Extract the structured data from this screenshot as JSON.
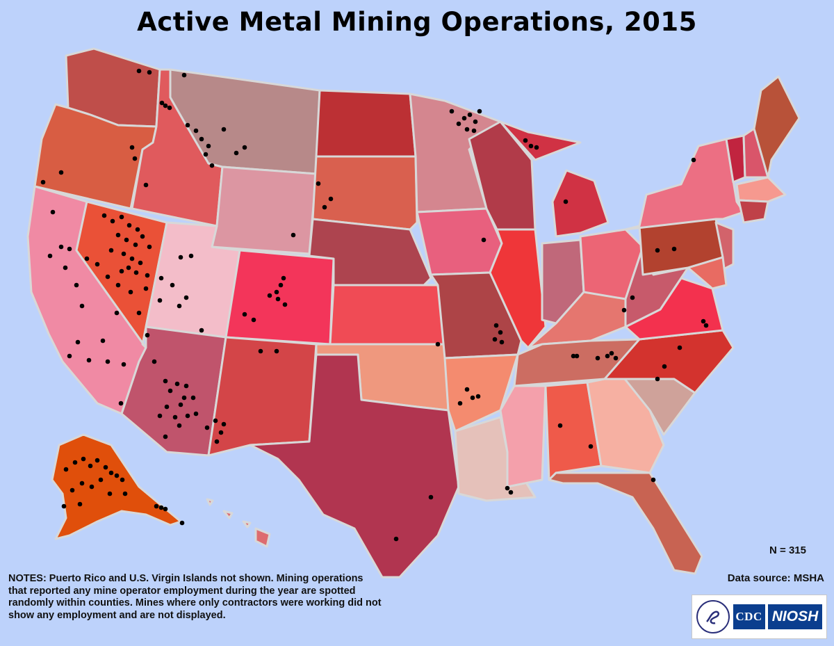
{
  "title": "Active Metal Mining Operations, 2015",
  "count_label": "N = 315",
  "source_label": "Data source: MSHA",
  "notes": "NOTES: Puerto Rico and U.S. Virgin Islands not shown. Mining operations that reported any mine operator employment during the year are spotted randomly within counties. Mines where only contractors were working did not show any employment and are not displayed.",
  "logo": {
    "cdc": "CDC",
    "niosh": "NIOSH"
  },
  "colors": {
    "background": "#bdd2fb",
    "border": "#d8d8d8",
    "dot": "#000000"
  },
  "states": [
    {
      "id": "WA",
      "color": "#bf4e4a"
    },
    {
      "id": "OR",
      "color": "#d85d43"
    },
    {
      "id": "CA",
      "color": "#f08aa4"
    },
    {
      "id": "NV",
      "color": "#ea5137"
    },
    {
      "id": "ID",
      "color": "#e05a5d"
    },
    {
      "id": "MT",
      "color": "#b78989"
    },
    {
      "id": "WY",
      "color": "#dc96a2"
    },
    {
      "id": "UT",
      "color": "#f3bdc9"
    },
    {
      "id": "AZ",
      "color": "#c0546c"
    },
    {
      "id": "CO",
      "color": "#f3355a"
    },
    {
      "id": "NM",
      "color": "#d34548"
    },
    {
      "id": "ND",
      "color": "#bc3034"
    },
    {
      "id": "SD",
      "color": "#d9604f"
    },
    {
      "id": "NE",
      "color": "#ad444f"
    },
    {
      "id": "KS",
      "color": "#f04b55"
    },
    {
      "id": "OK",
      "color": "#ef987e"
    },
    {
      "id": "TX",
      "color": "#b13550"
    },
    {
      "id": "MN",
      "color": "#d4868f"
    },
    {
      "id": "IA",
      "color": "#e8607e"
    },
    {
      "id": "MO",
      "color": "#ad4447"
    },
    {
      "id": "AR",
      "color": "#f48b6f"
    },
    {
      "id": "LA",
      "color": "#e5c1ba"
    },
    {
      "id": "WI",
      "color": "#b13b49"
    },
    {
      "id": "IL",
      "color": "#ef3639"
    },
    {
      "id": "MI",
      "color": "#d03244"
    },
    {
      "id": "IN",
      "color": "#c0687a"
    },
    {
      "id": "OH",
      "color": "#ec6575"
    },
    {
      "id": "KY",
      "color": "#e5766f"
    },
    {
      "id": "TN",
      "color": "#cc6d62"
    },
    {
      "id": "MS",
      "color": "#f4a0ab"
    },
    {
      "id": "AL",
      "color": "#ef5a4a"
    },
    {
      "id": "GA",
      "color": "#f6b0a2"
    },
    {
      "id": "FL",
      "color": "#c86352"
    },
    {
      "id": "SC",
      "color": "#cfa29a"
    },
    {
      "id": "NC",
      "color": "#d3332e"
    },
    {
      "id": "VA",
      "color": "#f3314e"
    },
    {
      "id": "WV",
      "color": "#c75a6b"
    },
    {
      "id": "PA",
      "color": "#b2422f"
    },
    {
      "id": "NY",
      "color": "#ec6f83"
    },
    {
      "id": "VT",
      "color": "#c1243f"
    },
    {
      "id": "NH",
      "color": "#d9556a"
    },
    {
      "id": "ME",
      "color": "#b85239"
    },
    {
      "id": "MA",
      "color": "#f6998f"
    },
    {
      "id": "CT",
      "color": "#bf4148"
    },
    {
      "id": "NJ",
      "color": "#d2636b"
    },
    {
      "id": "MD",
      "color": "#e86b62"
    },
    {
      "id": "AK",
      "color": "#e04f0b"
    },
    {
      "id": "HI",
      "color": "#dd6b6f"
    }
  ]
}
